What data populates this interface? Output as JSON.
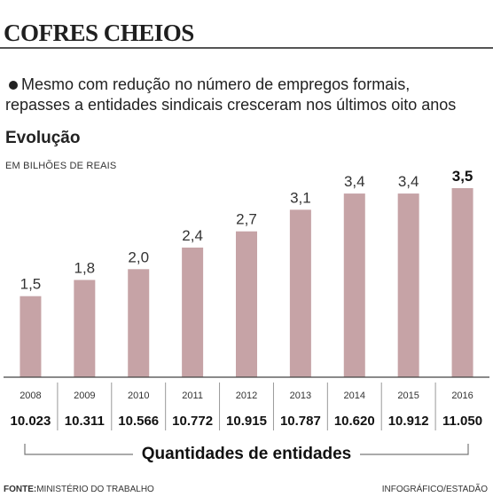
{
  "header": {
    "title": "COFRES CHEIOS",
    "subtitle_line1": "Mesmo com redução no número de empregos formais,",
    "subtitle_line2": "repasses a entidades sindicais cresceram nos últimos oito anos",
    "section": "Evolução",
    "unit": "EM BILHÕES DE REAIS"
  },
  "chart_data": {
    "type": "bar",
    "title": "Evolução",
    "ylabel": "EM BILHÕES DE REAIS",
    "categories": [
      "2008",
      "2009",
      "2010",
      "2011",
      "2012",
      "2013",
      "2014",
      "2015",
      "2016"
    ],
    "value_labels": [
      "1,5",
      "1,8",
      "2,0",
      "2,4",
      "2,7",
      "3,1",
      "3,4",
      "3,4",
      "3,5"
    ],
    "values": [
      1.5,
      1.8,
      2.0,
      2.4,
      2.7,
      3.1,
      3.4,
      3.4,
      3.5
    ],
    "ylim": [
      0,
      3.5
    ],
    "bar_color": "#c6a3a6",
    "entity_counts_label": "Quantidades de entidades",
    "entity_counts": [
      "10.023",
      "10.311",
      "10.566",
      "10.772",
      "10.915",
      "10.787",
      "10.620",
      "10.912",
      "11.050"
    ]
  },
  "footer": {
    "source_label": "FONTE:",
    "source_text": "MINISTÉRIO DO TRABALHO",
    "credit": "INFOGRÁFICO/ESTADÃO"
  }
}
